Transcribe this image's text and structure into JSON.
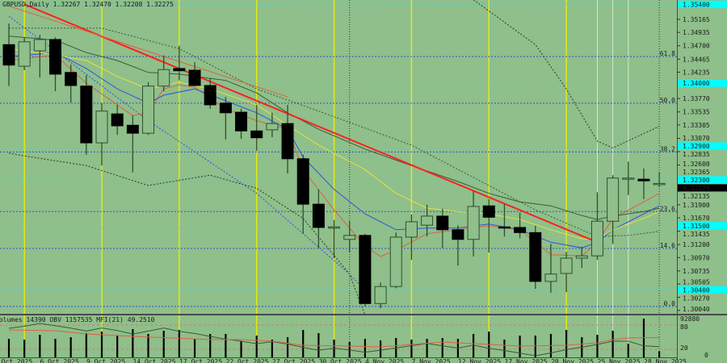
{
  "chart_data": {
    "type": "candlestick",
    "title": "GBPUSD,Daily 1.32267 1.32470 1.32208 1.32275",
    "symbol": "GBPUSD",
    "timeframe": "Daily",
    "last_ohlc": {
      "open": 1.32267,
      "high": 1.3247,
      "low": 1.32208,
      "close": 1.32275
    },
    "current_price_label": "1.32275",
    "ylim": [
      1.2996,
      1.3551
    ],
    "grid": false,
    "colors": {
      "background": "#8fbf8a",
      "bull": "#8fbf8a",
      "bear": "#000000",
      "wick": "#2f4f2f",
      "trendline": "#ff2020",
      "cyan_tag": "#00ffff"
    },
    "dates": [
      "2025-10-01",
      "2025-10-02",
      "2025-10-03",
      "2025-10-06",
      "2025-10-07",
      "2025-10-08",
      "2025-10-09",
      "2025-10-10",
      "2025-10-13",
      "2025-10-14",
      "2025-10-15",
      "2025-10-16",
      "2025-10-17",
      "2025-10-20",
      "2025-10-21",
      "2025-10-22",
      "2025-10-23",
      "2025-10-24",
      "2025-10-27",
      "2025-10-28",
      "2025-10-29",
      "2025-10-30",
      "2025-10-31",
      "2025-11-03",
      "2025-11-04",
      "2025-11-05",
      "2025-11-06",
      "2025-11-07",
      "2025-11-10",
      "2025-11-11",
      "2025-11-12",
      "2025-11-13",
      "2025-11-14",
      "2025-11-17",
      "2025-11-18",
      "2025-11-19",
      "2025-11-20",
      "2025-11-21",
      "2025-11-24",
      "2025-11-25",
      "2025-11-26",
      "2025-11-27",
      "2025-11-28"
    ],
    "ohlc": [
      [
        1.3472,
        1.3509,
        1.3399,
        1.3436
      ],
      [
        1.3434,
        1.3484,
        1.3427,
        1.3477
      ],
      [
        1.3461,
        1.3489,
        1.3414,
        1.3481
      ],
      [
        1.3481,
        1.3485,
        1.339,
        1.342
      ],
      [
        1.3423,
        1.3437,
        1.337,
        1.34
      ],
      [
        1.3399,
        1.3418,
        1.3278,
        1.3299
      ],
      [
        1.3299,
        1.3369,
        1.3259,
        1.3355
      ],
      [
        1.335,
        1.3366,
        1.3313,
        1.3329
      ],
      [
        1.333,
        1.3347,
        1.3247,
        1.3316
      ],
      [
        1.3316,
        1.3406,
        1.3313,
        1.3399
      ],
      [
        1.3399,
        1.3453,
        1.339,
        1.3428
      ],
      [
        1.343,
        1.347,
        1.3409,
        1.3426
      ],
      [
        1.3427,
        1.3441,
        1.3399,
        1.34
      ],
      [
        1.34,
        1.3413,
        1.3359,
        1.3366
      ],
      [
        1.3369,
        1.338,
        1.3305,
        1.3352
      ],
      [
        1.3353,
        1.3359,
        1.3306,
        1.332
      ],
      [
        1.332,
        1.3366,
        1.3285,
        1.3308
      ],
      [
        1.3322,
        1.3352,
        1.3309,
        1.3333
      ],
      [
        1.3333,
        1.3366,
        1.3245,
        1.3271
      ],
      [
        1.3271,
        1.3278,
        1.3139,
        1.3191
      ],
      [
        1.3191,
        1.3217,
        1.3114,
        1.315
      ],
      [
        1.315,
        1.3163,
        1.3096,
        1.3151
      ],
      [
        1.3129,
        1.3161,
        1.3106,
        1.3136
      ],
      [
        1.3136,
        1.3139,
        1.3011,
        1.3016
      ],
      [
        1.3016,
        1.3053,
        1.3008,
        1.3046
      ],
      [
        1.3046,
        1.3141,
        1.3043,
        1.3133
      ],
      [
        1.3133,
        1.3173,
        1.3093,
        1.316
      ],
      [
        1.3154,
        1.319,
        1.3134,
        1.317
      ],
      [
        1.317,
        1.3183,
        1.3114,
        1.3146
      ],
      [
        1.3146,
        1.3154,
        1.3083,
        1.3129
      ],
      [
        1.3129,
        1.3214,
        1.3099,
        1.3187
      ],
      [
        1.3188,
        1.32,
        1.3106,
        1.3168
      ],
      [
        1.3151,
        1.3191,
        1.3134,
        1.315
      ],
      [
        1.315,
        1.3176,
        1.3131,
        1.3141
      ],
      [
        1.3141,
        1.3153,
        1.3042,
        1.3055
      ],
      [
        1.3055,
        1.3121,
        1.3035,
        1.3068
      ],
      [
        1.3069,
        1.3107,
        1.3036,
        1.3096
      ],
      [
        1.3096,
        1.3116,
        1.3079,
        1.31
      ],
      [
        1.31,
        1.3212,
        1.3093,
        1.3161
      ],
      [
        1.3161,
        1.3242,
        1.3121,
        1.3237
      ],
      [
        1.3235,
        1.3266,
        1.3207,
        1.3237
      ],
      [
        1.3235,
        1.3254,
        1.32,
        1.3232
      ],
      [
        1.32267,
        1.3247,
        1.32208,
        1.32275
      ]
    ],
    "volume": [
      44500,
      42570,
      54180,
      44500,
      48380,
      58050,
      61920,
      52250,
      67730,
      56120,
      63860,
      65790,
      44500,
      56120,
      56120,
      38700,
      52250,
      42570,
      48380,
      65790,
      58050,
      42570,
      36770,
      44500,
      40640,
      46440,
      42570,
      44500,
      46440,
      44500,
      56120,
      61920,
      42570,
      52250,
      52250,
      56120,
      65790,
      48380,
      54180,
      63860,
      32900,
      92880,
      14390
    ],
    "indicators": [
      {
        "kind": "ma",
        "color": "#e06040",
        "points": [
          [
            "2025-10-01",
            1.3444
          ],
          [
            "2025-10-06",
            1.3454
          ],
          [
            "2025-10-08",
            1.3404
          ],
          [
            "2025-10-13",
            1.3347
          ],
          [
            "2025-10-14",
            1.3352
          ],
          [
            "2025-10-15",
            1.3394
          ],
          [
            "2025-10-16",
            1.3401
          ],
          [
            "2025-10-17",
            1.3397
          ],
          [
            "2025-10-21",
            1.3359
          ],
          [
            "2025-10-23",
            1.3338
          ],
          [
            "2025-10-27",
            1.3323
          ],
          [
            "2025-10-28",
            1.3252
          ],
          [
            "2025-10-30",
            1.3181
          ],
          [
            "2025-11-03",
            1.3117
          ],
          [
            "2025-11-04",
            1.3099
          ],
          [
            "2025-11-05",
            1.311
          ],
          [
            "2025-11-07",
            1.3139
          ],
          [
            "2025-11-11",
            1.3146
          ],
          [
            "2025-11-13",
            1.3153
          ],
          [
            "2025-11-17",
            1.3146
          ],
          [
            "2025-11-18",
            1.3124
          ],
          [
            "2025-11-19",
            1.3102
          ],
          [
            "2025-11-21",
            1.31
          ],
          [
            "2025-11-24",
            1.3124
          ],
          [
            "2025-11-25",
            1.3166
          ],
          [
            "2025-11-27",
            1.3195
          ],
          [
            "2025-11-28",
            1.321
          ]
        ]
      },
      {
        "kind": "ma",
        "color": "#3050e0",
        "points": [
          [
            "2025-10-01",
            1.3451
          ],
          [
            "2025-10-06",
            1.3458
          ],
          [
            "2025-10-08",
            1.343
          ],
          [
            "2025-10-10",
            1.3394
          ],
          [
            "2025-10-14",
            1.3369
          ],
          [
            "2025-10-15",
            1.3383
          ],
          [
            "2025-10-17",
            1.3394
          ],
          [
            "2025-10-21",
            1.3373
          ],
          [
            "2025-10-23",
            1.3352
          ],
          [
            "2025-10-27",
            1.3323
          ],
          [
            "2025-10-28",
            1.3274
          ],
          [
            "2025-10-30",
            1.3217
          ],
          [
            "2025-11-03",
            1.3174
          ],
          [
            "2025-11-05",
            1.3146
          ],
          [
            "2025-11-07",
            1.3149
          ],
          [
            "2025-11-11",
            1.3149
          ],
          [
            "2025-11-13",
            1.3156
          ],
          [
            "2025-11-17",
            1.3146
          ],
          [
            "2025-11-19",
            1.3124
          ],
          [
            "2025-11-21",
            1.3114
          ],
          [
            "2025-11-24",
            1.3124
          ],
          [
            "2025-11-25",
            1.3146
          ],
          [
            "2025-11-27",
            1.3174
          ],
          [
            "2025-11-28",
            1.3188
          ]
        ]
      },
      {
        "kind": "ma",
        "color": "#e8e040",
        "points": [
          [
            "2025-10-01",
            1.3465
          ],
          [
            "2025-10-06",
            1.3454
          ],
          [
            "2025-10-08",
            1.3444
          ],
          [
            "2025-10-10",
            1.3416
          ],
          [
            "2025-10-14",
            1.3394
          ],
          [
            "2025-10-16",
            1.3406
          ],
          [
            "2025-10-20",
            1.3394
          ],
          [
            "2025-10-23",
            1.3366
          ],
          [
            "2025-10-27",
            1.333
          ],
          [
            "2025-10-29",
            1.3295
          ],
          [
            "2025-11-03",
            1.3252
          ],
          [
            "2025-11-05",
            1.321
          ],
          [
            "2025-11-07",
            1.3184
          ],
          [
            "2025-11-11",
            1.3178
          ],
          [
            "2025-11-13",
            1.3174
          ],
          [
            "2025-11-17",
            1.3164
          ],
          [
            "2025-11-19",
            1.3146
          ],
          [
            "2025-11-21",
            1.313
          ],
          [
            "2025-11-24",
            1.3129
          ],
          [
            "2025-11-25",
            1.3146
          ],
          [
            "2025-11-27",
            1.3166
          ],
          [
            "2025-11-28",
            1.3178
          ]
        ]
      },
      {
        "kind": "ma",
        "color": "#3a5a3a",
        "points": [
          [
            "2025-10-01",
            1.3487
          ],
          [
            "2025-10-06",
            1.348
          ],
          [
            "2025-10-08",
            1.3458
          ],
          [
            "2025-10-10",
            1.3444
          ],
          [
            "2025-10-14",
            1.3423
          ],
          [
            "2025-10-16",
            1.342
          ],
          [
            "2025-10-21",
            1.3409
          ],
          [
            "2025-10-23",
            1.3387
          ],
          [
            "2025-10-27",
            1.3352
          ],
          [
            "2025-10-29",
            1.3323
          ],
          [
            "2025-11-03",
            1.3288
          ],
          [
            "2025-11-06",
            1.3259
          ],
          [
            "2025-11-11",
            1.3231
          ],
          [
            "2025-11-13",
            1.321
          ],
          [
            "2025-11-17",
            1.3195
          ],
          [
            "2025-11-19",
            1.3188
          ],
          [
            "2025-11-21",
            1.3171
          ],
          [
            "2025-11-24",
            1.3164
          ],
          [
            "2025-11-25",
            1.317
          ],
          [
            "2025-11-27",
            1.3178
          ],
          [
            "2025-11-28",
            1.3184
          ]
        ]
      },
      {
        "kind": "envelope-upper",
        "color": "#3a5a3a",
        "dash": true,
        "points": [
          [
            "2025-10-01",
            1.3501
          ],
          [
            "2025-10-09",
            1.3501
          ],
          [
            "2025-10-16",
            1.3465
          ],
          [
            "2025-10-23",
            1.3394
          ],
          [
            "2025-10-30",
            1.3345
          ],
          [
            "2025-11-06",
            1.3295
          ],
          [
            "2025-11-12",
            1.3238
          ],
          [
            "2025-11-18",
            1.3181
          ],
          [
            "2025-11-24",
            1.3134
          ],
          [
            "2025-11-26",
            1.3136
          ],
          [
            "2025-11-28",
            1.3143
          ]
        ]
      },
      {
        "kind": "band-upper",
        "color": "#2a3a2a",
        "dash": true,
        "points": [
          [
            "2025-11-12",
            1.3551
          ],
          [
            "2025-11-18",
            1.3472
          ],
          [
            "2025-11-20",
            1.3394
          ],
          [
            "2025-11-24",
            1.3302
          ],
          [
            "2025-11-25",
            1.329
          ],
          [
            "2025-11-28",
            1.3328
          ]
        ]
      },
      {
        "kind": "band-lower",
        "color": "#2a3a2a",
        "dash": true,
        "points": [
          [
            "2025-10-01",
            1.3281
          ],
          [
            "2025-10-02",
            1.3276
          ],
          [
            "2025-10-08",
            1.3259
          ],
          [
            "2025-10-14",
            1.3224
          ],
          [
            "2025-10-20",
            1.3242
          ],
          [
            "2025-10-23",
            1.3219
          ],
          [
            "2025-10-28",
            1.3166
          ],
          [
            "2025-10-31",
            1.3068
          ],
          [
            "2025-11-03",
            1.2996
          ]
        ]
      },
      {
        "kind": "envelope-lower",
        "color": "#3050e0",
        "dash": true,
        "points": [
          [
            "2025-10-01",
            1.3522
          ],
          [
            "2025-10-14",
            1.3338
          ],
          [
            "2025-10-23",
            1.321
          ],
          [
            "2025-10-31",
            1.3068
          ],
          [
            "2025-11-03",
            1.3039
          ]
        ]
      }
    ],
    "trendlines": [
      {
        "color": "#ff2020",
        "width": 2,
        "points": [
          [
            "2025-10-02",
            1.3543
          ],
          [
            "2025-11-24",
            1.3124
          ]
        ]
      },
      {
        "color": "#e06040",
        "width": 1,
        "points": [
          [
            "2025-10-01",
            1.354
          ],
          [
            "2025-10-27",
            1.338
          ]
        ]
      }
    ],
    "fibonacci": [
      {
        "label": "61.8",
        "price": 1.3451
      },
      {
        "label": "50.0",
        "price": 1.3369
      },
      {
        "label": "38.2",
        "price": 1.3283
      },
      {
        "label": "23.6",
        "price": 1.3178
      },
      {
        "label": "14.6",
        "price": 1.3113
      },
      {
        "label": "0.0",
        "price": 1.3011
      }
    ],
    "horizontal_levels": [
      {
        "label": "1.35400",
        "price": 1.3543
      },
      {
        "label": "1.34000",
        "price": 1.3404
      },
      {
        "label": "1.32900",
        "price": 1.329
      },
      {
        "label": "1.32300",
        "price": 1.3232
      },
      {
        "label": "1.31500",
        "price": 1.3149
      },
      {
        "label": "1.30400",
        "price": 1.3043
      }
    ],
    "vertical_lines": {
      "yellow": [
        "2025-10-02",
        "2025-10-09",
        "2025-10-16",
        "2025-10-23",
        "2025-10-30",
        "2025-11-06",
        "2025-11-13",
        "2025-11-20"
      ],
      "separator": [
        "2025-10-31",
        "2025-11-28"
      ],
      "white": [
        "2025-11-24",
        "2025-11-25",
        "2025-11-26"
      ]
    },
    "price_axis_ticks": [
      "1.35165",
      "1.34935",
      "1.34700",
      "1.34465",
      "1.34235",
      "1.33770",
      "1.33535",
      "1.33305",
      "1.33070",
      "1.32835",
      "1.32600",
      "1.32365",
      "1.32135",
      "1.31900",
      "1.31670",
      "1.31435",
      "1.31200",
      "1.30970",
      "1.30735",
      "1.30505",
      "1.30270",
      "1.30040"
    ],
    "time_axis_labels": [
      "1 Oct 2025",
      "6 Oct 2025",
      "9 Oct 2025",
      "14 Oct 2025",
      "17 Oct 2025",
      "22 Oct 2025",
      "27 Oct 2025",
      "30 Oct 2025",
      "4 Nov 2025",
      "7 Nov 2025",
      "12 Nov 2025",
      "17 Nov 2025",
      "20 Nov 2025",
      "25 Nov 2025",
      "28 Nov 2025"
    ],
    "subwindow": {
      "label": "Volumes 14390  OBV 1157535  MFI(21) 49.2510",
      "volume_max_label": "92880",
      "volume_max": 92880,
      "mfi_levels": [
        {
          "label": "80",
          "value": 80
        },
        {
          "label": "20",
          "value": 20
        }
      ],
      "zero_label": "0",
      "obv_last": 1157535,
      "mfi_color": "#e06040",
      "obv_color": "#3a5a3a",
      "mfi": [
        [
          "2025-10-01",
          68
        ],
        [
          "2025-10-06",
          66
        ],
        [
          "2025-10-08",
          58
        ],
        [
          "2025-10-13",
          52
        ],
        [
          "2025-10-20",
          44
        ],
        [
          "2025-10-22",
          44
        ],
        [
          "2025-10-24",
          40
        ],
        [
          "2025-10-28",
          30
        ],
        [
          "2025-10-31",
          28
        ],
        [
          "2025-11-04",
          26
        ],
        [
          "2025-11-10",
          38
        ],
        [
          "2025-11-12",
          34
        ],
        [
          "2025-11-17",
          28
        ],
        [
          "2025-11-20",
          30
        ],
        [
          "2025-11-24",
          36
        ],
        [
          "2025-11-25",
          44
        ],
        [
          "2025-11-26",
          48
        ],
        [
          "2025-11-28",
          49.251
        ]
      ]
    }
  }
}
